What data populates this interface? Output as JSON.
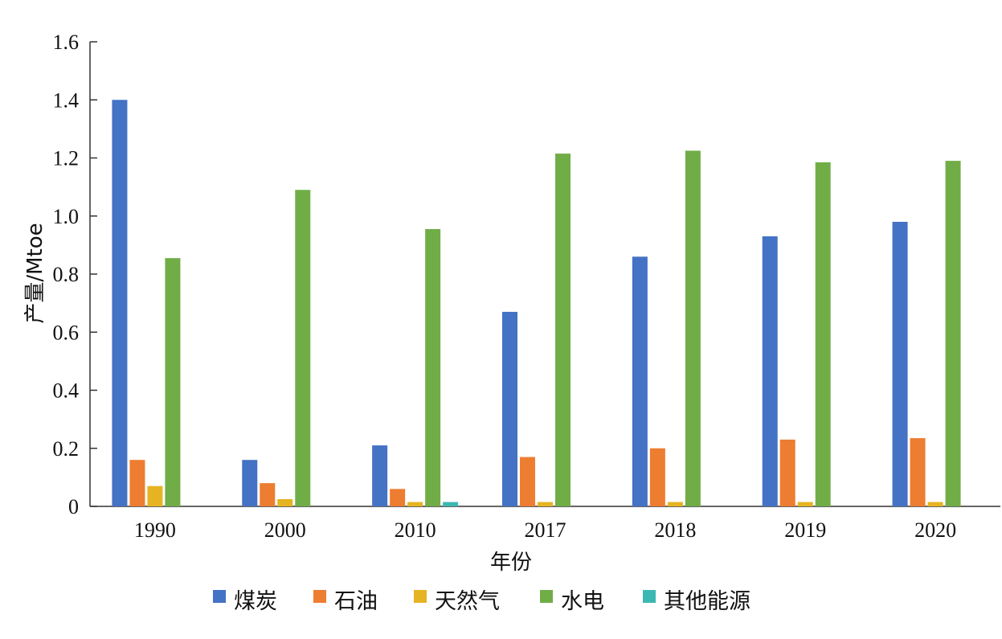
{
  "chart_data": {
    "type": "bar",
    "title": "",
    "xlabel": "年份",
    "ylabel": "产量/Mtoe",
    "ylim": [
      0,
      1.6
    ],
    "yticks": [
      "0",
      "0.2",
      "0.4",
      "0.6",
      "0.8",
      "1.0",
      "1.2",
      "1.4",
      "1.6"
    ],
    "grid": false,
    "legend_position": "bottom",
    "categories": [
      "1990",
      "2000",
      "2010",
      "2017",
      "2018",
      "2019",
      "2020"
    ],
    "series": [
      {
        "name": "煤炭",
        "color": "#4472C4",
        "values": [
          1.4,
          0.16,
          0.21,
          0.67,
          0.86,
          0.93,
          0.98
        ]
      },
      {
        "name": "石油",
        "color": "#ED7D31",
        "values": [
          0.16,
          0.08,
          0.06,
          0.17,
          0.2,
          0.23,
          0.235
        ]
      },
      {
        "name": "天然气",
        "color": "#E6B422",
        "values": [
          0.07,
          0.025,
          0.015,
          0.015,
          0.015,
          0.015,
          0.015
        ]
      },
      {
        "name": "水电",
        "color": "#70AD47",
        "values": [
          0.855,
          1.09,
          0.955,
          1.215,
          1.225,
          1.185,
          1.19
        ]
      },
      {
        "name": "其他能源",
        "color": "#3CB8B2",
        "values": [
          0,
          0,
          0.015,
          0,
          0,
          0,
          0
        ]
      }
    ]
  }
}
